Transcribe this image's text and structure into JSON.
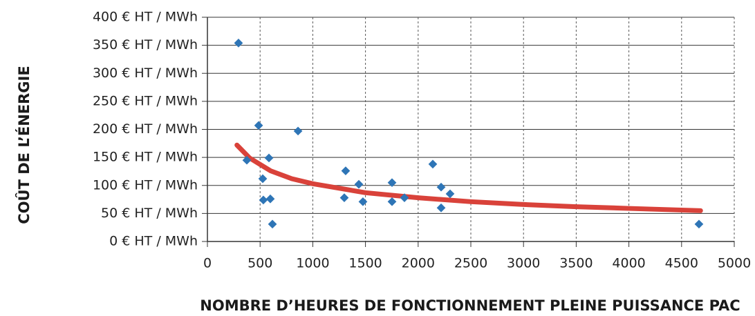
{
  "chart_data": {
    "type": "scatter",
    "xlabel": "NOMBRE D’HEURES DE FONCTIONNEMENT PLEINE PUISSANCE PAC",
    "ylabel": "COÛT DE L’ÉNERGIE",
    "x": [
      295,
      486,
      860,
      374,
      584,
      525,
      531,
      597,
      617,
      1312,
      1437,
      1299,
      1476,
      1752,
      1752,
      1870,
      2139,
      2218,
      2303,
      2218,
      4665
    ],
    "values": [
      354,
      207,
      197,
      145,
      149,
      112,
      74,
      76,
      31,
      126,
      102,
      78,
      71,
      105,
      71,
      78,
      138,
      97,
      85,
      60,
      31
    ],
    "color": "#2e75b6",
    "trendline": {
      "color": "#d9423a",
      "x": [
        280,
        400,
        600,
        800,
        1000,
        1500,
        2000,
        2500,
        3000,
        3500,
        4000,
        4680
      ],
      "values": [
        172,
        149,
        126,
        112,
        103,
        87,
        78,
        71,
        66,
        62,
        59,
        55
      ]
    },
    "xlim": [
      0,
      5000
    ],
    "xticks": [
      0,
      500,
      1000,
      1500,
      2000,
      2500,
      3000,
      3500,
      4000,
      4500,
      5000
    ],
    "ylim": [
      0,
      400
    ],
    "yticks": [
      {
        "value": 0,
        "label": "0 € HT / MWh"
      },
      {
        "value": 50,
        "label": "50 € HT / MWh"
      },
      {
        "value": 100,
        "label": "100 € HT / MWh"
      },
      {
        "value": 150,
        "label": "150 € HT / MWh"
      },
      {
        "value": 200,
        "label": "200 € HT / MWh"
      },
      {
        "value": 250,
        "label": "250 € HT / MWh"
      },
      {
        "value": 300,
        "label": "300 € HT / MWh"
      },
      {
        "value": 350,
        "label": "350 € HT / MWh"
      },
      {
        "value": 400,
        "label": "400 € HT / MWh"
      }
    ],
    "grid": true
  }
}
